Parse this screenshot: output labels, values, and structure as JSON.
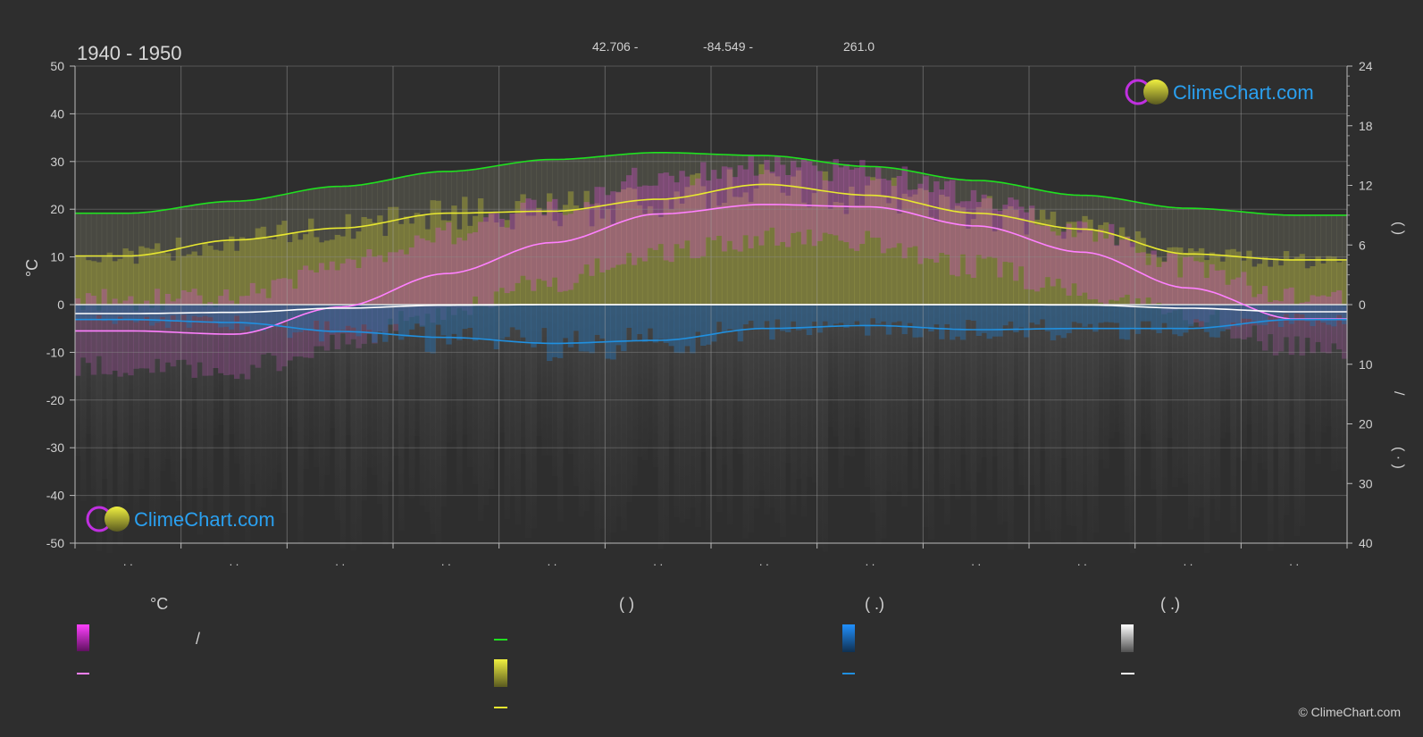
{
  "header": {
    "period": "1940 - 1950",
    "latitude": "42.706 -",
    "longitude": "-84.549 -",
    "elevation": "261.0"
  },
  "brand": {
    "name": "ClimeChart.com",
    "copyright": "© ClimeChart.com",
    "logo_icon": "climechart-logo-icon"
  },
  "legend": {
    "col1_header": "°C",
    "col2_header": "(          )",
    "col3_header": "(   .)",
    "col4_header": "(   .)",
    "slash": "/",
    "colors": {
      "temp_range": "#e020e0",
      "temp_mean": "#ff80ff",
      "daylight": "#20e020",
      "sunshine": "#d8d830",
      "sunshine_mean": "#e8e830",
      "rain": "#2090e0",
      "rain_mean": "#2090e0",
      "snow": "#e0e0e0",
      "snow_mean": "#ffffff"
    }
  },
  "chart_data": {
    "type": "line",
    "x_categories": [
      ". .",
      ". .",
      ". .",
      ". .",
      ". .",
      ". .",
      ". .",
      ". .",
      ". .",
      ". .",
      ". .",
      ". ."
    ],
    "left_axis": {
      "label": "°C",
      "ticks": [
        50,
        40,
        30,
        20,
        10,
        0,
        -10,
        -20,
        -30,
        -40,
        -50
      ],
      "range": [
        -50,
        50
      ]
    },
    "right_axis_top": {
      "ticks": [
        24,
        18,
        12,
        6,
        0
      ],
      "range": [
        0,
        24
      ]
    },
    "right_axis_bottom": {
      "ticks": [
        0,
        10,
        20,
        30,
        40
      ],
      "range": [
        0,
        40
      ]
    },
    "right_axis_labels": [
      "(     )",
      "/",
      "(  ·  )"
    ],
    "grid": true,
    "series": [
      {
        "key": "daylight",
        "color": "#20e020",
        "axis": "right_top",
        "values": [
          9.2,
          10.4,
          11.9,
          13.4,
          14.6,
          15.3,
          15.0,
          13.9,
          12.5,
          11.0,
          9.7,
          9.0
        ]
      },
      {
        "key": "sunshine",
        "color": "#e8e830",
        "axis": "right_top",
        "values": [
          4.9,
          6.5,
          7.7,
          9.2,
          9.4,
          10.6,
          12.1,
          11.0,
          9.2,
          7.6,
          5.1,
          4.5
        ]
      },
      {
        "key": "temp_mean",
        "color": "#ff80ff",
        "axis": "left",
        "values": [
          -5.5,
          -6.2,
          -0.5,
          6.5,
          13.0,
          19.0,
          21.0,
          20.5,
          16.5,
          11.0,
          3.5,
          -3.0
        ]
      },
      {
        "key": "rain",
        "color": "#2090e0",
        "axis": "right_bottom",
        "values": [
          2.5,
          3.0,
          4.5,
          5.5,
          6.5,
          6.0,
          4.0,
          3.5,
          4.2,
          4.0,
          4.0,
          2.5
        ]
      },
      {
        "key": "snow",
        "color": "#ffffff",
        "axis": "right_bottom",
        "values": [
          1.5,
          1.3,
          0.6,
          0.1,
          0.0,
          0.0,
          0.0,
          0.0,
          0.0,
          0.05,
          0.6,
          1.2
        ]
      }
    ],
    "temp_range_max": [
      1,
      2,
      8,
      15,
      21,
      27,
      29,
      28,
      23,
      16,
      8,
      2
    ],
    "temp_range_min": [
      -13,
      -14,
      -8,
      -1,
      5,
      11,
      14,
      13,
      8,
      3,
      -2,
      -9
    ]
  }
}
